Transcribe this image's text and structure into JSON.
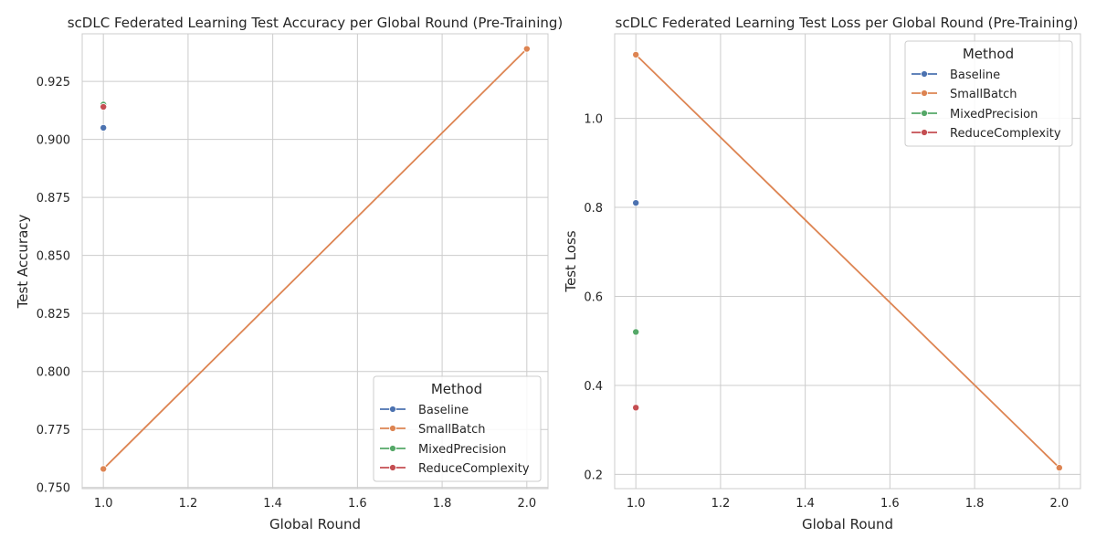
{
  "chart_data": [
    {
      "type": "line",
      "title": "scDLC Federated Learning Test Accuracy per Global Round (Pre-Training)",
      "xlabel": "Global Round",
      "ylabel": "Test Accuracy",
      "xlim": [
        0.95,
        2.05
      ],
      "ylim": [
        0.7495,
        0.9455
      ],
      "x_ticks": [
        "1.0",
        "1.2",
        "1.4",
        "1.6",
        "1.8",
        "2.0"
      ],
      "y_ticks": [
        "0.750",
        "0.775",
        "0.800",
        "0.825",
        "0.850",
        "0.875",
        "0.900",
        "0.925"
      ],
      "grid": true,
      "legend": {
        "title": "Method",
        "position": "lower-right"
      },
      "series": [
        {
          "name": "Baseline",
          "color": "#4c72b0",
          "x": [
            1.0
          ],
          "y": [
            0.905
          ]
        },
        {
          "name": "SmallBatch",
          "color": "#dd8452",
          "x": [
            1.0,
            2.0
          ],
          "y": [
            0.758,
            0.939
          ]
        },
        {
          "name": "MixedPrecision",
          "color": "#55a868",
          "x": [
            1.0
          ],
          "y": [
            0.915
          ]
        },
        {
          "name": "ReduceComplexity",
          "color": "#c44e52",
          "x": [
            1.0
          ],
          "y": [
            0.914
          ]
        }
      ]
    },
    {
      "type": "line",
      "title": "scDLC Federated Learning Test Loss per Global Round (Pre-Training)",
      "xlabel": "Global Round",
      "ylabel": "Test Loss",
      "xlim": [
        0.95,
        2.05
      ],
      "ylim": [
        0.168,
        1.19
      ],
      "x_ticks": [
        "1.0",
        "1.2",
        "1.4",
        "1.6",
        "1.8",
        "2.0"
      ],
      "y_ticks": [
        "0.2",
        "0.4",
        "0.6",
        "0.8",
        "1.0"
      ],
      "grid": true,
      "legend": {
        "title": "Method",
        "position": "upper-right"
      },
      "series": [
        {
          "name": "Baseline",
          "color": "#4c72b0",
          "x": [
            1.0
          ],
          "y": [
            0.81
          ]
        },
        {
          "name": "SmallBatch",
          "color": "#dd8452",
          "x": [
            1.0,
            2.0
          ],
          "y": [
            1.143,
            0.215
          ]
        },
        {
          "name": "MixedPrecision",
          "color": "#55a868",
          "x": [
            1.0
          ],
          "y": [
            0.52
          ]
        },
        {
          "name": "ReduceComplexity",
          "color": "#c44e52",
          "x": [
            1.0
          ],
          "y": [
            0.35
          ]
        }
      ]
    }
  ]
}
